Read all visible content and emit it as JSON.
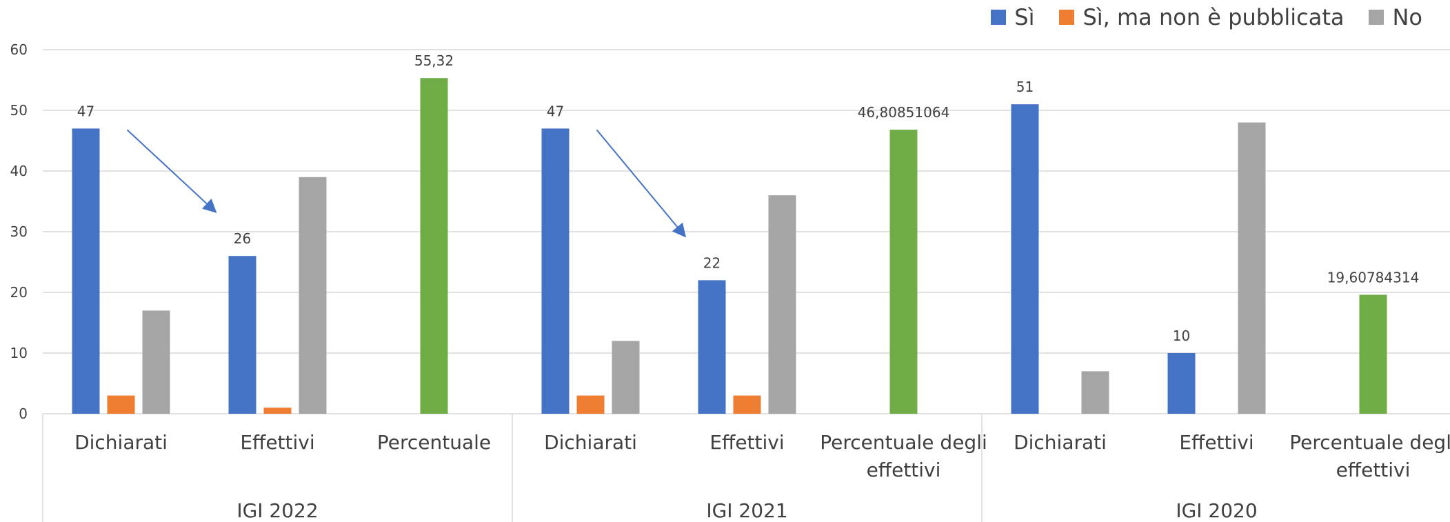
{
  "chart_data": {
    "type": "bar",
    "ylim": [
      0,
      60
    ],
    "yticks": [
      0,
      10,
      20,
      30,
      40,
      50,
      60
    ],
    "grid": true,
    "legend_position": "top-right",
    "colors": {
      "si": "#4472C4",
      "si_non_pubblicata": "#ED7D31",
      "no": "#A5A5A5",
      "percentuale": "#70AD47"
    },
    "legend": [
      {
        "label": "Sì",
        "color": "#4472C4"
      },
      {
        "label": "Sì, ma non è pubblicata",
        "color": "#ED7D31"
      },
      {
        "label": "No",
        "color": "#A5A5A5"
      }
    ],
    "groups": [
      {
        "name": "IGI 2022",
        "categories": [
          {
            "label": [
              "Dichiarati"
            ],
            "bars": [
              {
                "series": "si",
                "value": 47,
                "label": "47"
              },
              {
                "series": "si_non_pubblicata",
                "value": 3
              },
              {
                "series": "no",
                "value": 17
              }
            ]
          },
          {
            "label": [
              "Effettivi"
            ],
            "bars": [
              {
                "series": "si",
                "value": 26,
                "label": "26"
              },
              {
                "series": "si_non_pubblicata",
                "value": 1
              },
              {
                "series": "no",
                "value": 39
              }
            ]
          },
          {
            "label": [
              "Percentuale"
            ],
            "bars": [
              {
                "series": "percentuale",
                "value": 55.32,
                "label": "55,32"
              }
            ]
          }
        ]
      },
      {
        "name": "IGI 2021",
        "categories": [
          {
            "label": [
              "Dichiarati"
            ],
            "bars": [
              {
                "series": "si",
                "value": 47,
                "label": "47"
              },
              {
                "series": "si_non_pubblicata",
                "value": 3
              },
              {
                "series": "no",
                "value": 12
              }
            ]
          },
          {
            "label": [
              "Effettivi"
            ],
            "bars": [
              {
                "series": "si",
                "value": 22,
                "label": "22"
              },
              {
                "series": "si_non_pubblicata",
                "value": 3
              },
              {
                "series": "no",
                "value": 36
              }
            ]
          },
          {
            "label": [
              "Percentuale degli",
              "effettivi"
            ],
            "bars": [
              {
                "series": "percentuale",
                "value": 46.80851064,
                "label": "46,80851064"
              }
            ]
          }
        ]
      },
      {
        "name": "IGI 2020",
        "categories": [
          {
            "label": [
              "Dichiarati"
            ],
            "bars": [
              {
                "series": "si",
                "value": 51,
                "label": "51"
              },
              {
                "series": "si_non_pubblicata",
                "value": 0
              },
              {
                "series": "no",
                "value": 7
              }
            ]
          },
          {
            "label": [
              "Effettivi"
            ],
            "bars": [
              {
                "series": "si",
                "value": 10,
                "label": "10"
              },
              {
                "series": "si_non_pubblicata",
                "value": 0
              },
              {
                "series": "no",
                "value": 48
              }
            ]
          },
          {
            "label": [
              "Percentuale degli",
              "effettivi"
            ],
            "bars": [
              {
                "series": "percentuale",
                "value": 19.60784314,
                "label": "19,60784314"
              }
            ]
          }
        ]
      }
    ],
    "annotations": [
      {
        "type": "arrow",
        "group": 0,
        "from_category": 0,
        "to_category": 1,
        "color": "#4472C4"
      },
      {
        "type": "arrow",
        "group": 1,
        "from_category": 0,
        "to_category": 1,
        "color": "#4472C4"
      }
    ]
  }
}
